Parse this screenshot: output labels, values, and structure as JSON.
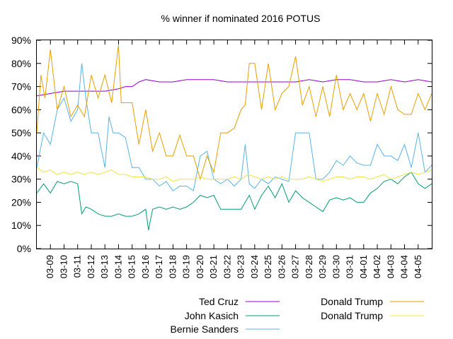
{
  "chart_data": {
    "type": "line",
    "title": "% winner if nominated 2016 POTUS",
    "xlabel": "",
    "ylabel": "",
    "ylim": [
      0,
      90
    ],
    "xlim": [
      "03-08",
      "04-06"
    ],
    "grid": false,
    "legend_position": "bottom",
    "y_ticks": [
      "0%",
      "10%",
      "20%",
      "30%",
      "40%",
      "50%",
      "60%",
      "70%",
      "80%",
      "90%"
    ],
    "x_ticks": [
      "03-09",
      "03-10",
      "03-11",
      "03-12",
      "03-13",
      "03-14",
      "03-15",
      "03-16",
      "03-17",
      "03-18",
      "03-19",
      "03-20",
      "03-21",
      "03-22",
      "03-23",
      "03-24",
      "03-25",
      "03-26",
      "03-27",
      "03-28",
      "03-29",
      "03-30",
      "03-31",
      "04-01",
      "04-02",
      "04-03",
      "04-04",
      "04-05"
    ],
    "series": [
      {
        "name": "Ted Cruz",
        "color": "#9400d3",
        "points": [
          [
            "03-08",
            66
          ],
          [
            "03-09",
            67
          ],
          [
            "03-10",
            68
          ],
          [
            "03-11",
            68
          ],
          [
            "03-12",
            68
          ],
          [
            "03-13",
            68
          ],
          [
            "03-14",
            69
          ],
          [
            "03-14.5",
            70
          ],
          [
            "03-15",
            70
          ],
          [
            "03-15.5",
            72
          ],
          [
            "03-16",
            73
          ],
          [
            "03-17",
            72
          ],
          [
            "03-18",
            72
          ],
          [
            "03-19",
            73
          ],
          [
            "03-20",
            73
          ],
          [
            "03-21",
            73
          ],
          [
            "03-22",
            72
          ],
          [
            "03-23",
            72
          ],
          [
            "03-24",
            72
          ],
          [
            "03-25",
            72
          ],
          [
            "03-26",
            72
          ],
          [
            "03-27",
            72
          ],
          [
            "03-28",
            73
          ],
          [
            "03-29",
            72
          ],
          [
            "03-30",
            73
          ],
          [
            "03-31",
            73
          ],
          [
            "04-01",
            72
          ],
          [
            "04-02",
            72
          ],
          [
            "04-03",
            73
          ],
          [
            "04-04",
            72
          ],
          [
            "04-05",
            73
          ],
          [
            "04-06",
            72
          ]
        ]
      },
      {
        "name": "John Kasich",
        "color": "#009e73",
        "points": [
          [
            "03-08",
            24
          ],
          [
            "03-08.5",
            28
          ],
          [
            "03-09",
            24
          ],
          [
            "03-09.5",
            29
          ],
          [
            "03-10",
            28
          ],
          [
            "03-10.5",
            29
          ],
          [
            "03-11",
            28
          ],
          [
            "03-11.3",
            15
          ],
          [
            "03-11.6",
            18
          ],
          [
            "03-12",
            17
          ],
          [
            "03-12.5",
            15
          ],
          [
            "03-13",
            14
          ],
          [
            "03-13.5",
            14
          ],
          [
            "03-14",
            15
          ],
          [
            "03-14.5",
            14
          ],
          [
            "03-15",
            14
          ],
          [
            "03-15.5",
            15
          ],
          [
            "03-16",
            17
          ],
          [
            "03-16.2",
            8
          ],
          [
            "03-16.5",
            17
          ],
          [
            "03-17",
            18
          ],
          [
            "03-17.5",
            17
          ],
          [
            "03-18",
            18
          ],
          [
            "03-18.5",
            17
          ],
          [
            "03-19",
            18
          ],
          [
            "03-19.5",
            20
          ],
          [
            "03-20",
            23
          ],
          [
            "03-20.5",
            22
          ],
          [
            "03-21",
            23
          ],
          [
            "03-21.5",
            17
          ],
          [
            "03-22",
            17
          ],
          [
            "03-22.5",
            17
          ],
          [
            "03-23",
            17
          ],
          [
            "03-23.3",
            20
          ],
          [
            "03-23.6",
            23
          ],
          [
            "03-24",
            17
          ],
          [
            "03-24.5",
            23
          ],
          [
            "03-25",
            27
          ],
          [
            "03-25.5",
            22
          ],
          [
            "03-26",
            28
          ],
          [
            "03-26.5",
            20
          ],
          [
            "03-27",
            25
          ],
          [
            "03-27.5",
            22
          ],
          [
            "03-28",
            20
          ],
          [
            "03-28.5",
            18
          ],
          [
            "03-29",
            16
          ],
          [
            "03-29.5",
            21
          ],
          [
            "03-30",
            22
          ],
          [
            "03-30.5",
            21
          ],
          [
            "03-31",
            22
          ],
          [
            "03-31.5",
            20
          ],
          [
            "04-01",
            20
          ],
          [
            "04-01.5",
            24
          ],
          [
            "04-02",
            26
          ],
          [
            "04-02.5",
            29
          ],
          [
            "04-03",
            30
          ],
          [
            "04-03.5",
            28
          ],
          [
            "04-04",
            31
          ],
          [
            "04-04.5",
            33
          ],
          [
            "04-05",
            28
          ],
          [
            "04-05.5",
            26
          ],
          [
            "04-06",
            28
          ]
        ]
      },
      {
        "name": "Bernie Sanders",
        "color": "#56b4e9",
        "points": [
          [
            "03-08",
            35
          ],
          [
            "03-08.5",
            50
          ],
          [
            "03-09",
            45
          ],
          [
            "03-09.5",
            60
          ],
          [
            "03-10",
            65
          ],
          [
            "03-10.5",
            55
          ],
          [
            "03-11",
            60
          ],
          [
            "03-11.3",
            80
          ],
          [
            "03-11.6",
            65
          ],
          [
            "03-12",
            50
          ],
          [
            "03-12.5",
            50
          ],
          [
            "03-13",
            35
          ],
          [
            "03-13.3",
            57
          ],
          [
            "03-13.6",
            50
          ],
          [
            "03-14",
            50
          ],
          [
            "03-14.5",
            48
          ],
          [
            "03-15",
            35
          ],
          [
            "03-15.5",
            35
          ],
          [
            "03-16",
            30
          ],
          [
            "03-16.5",
            30
          ],
          [
            "03-17",
            27
          ],
          [
            "03-17.5",
            29
          ],
          [
            "03-18",
            25
          ],
          [
            "03-18.5",
            27
          ],
          [
            "03-19",
            27
          ],
          [
            "03-19.5",
            25
          ],
          [
            "03-20",
            40
          ],
          [
            "03-20.5",
            42
          ],
          [
            "03-21",
            30
          ],
          [
            "03-21.5",
            28
          ],
          [
            "03-22",
            30
          ],
          [
            "03-22.5",
            27
          ],
          [
            "03-23",
            30
          ],
          [
            "03-23.3",
            45
          ],
          [
            "03-23.6",
            28
          ],
          [
            "03-24",
            26
          ],
          [
            "03-24.5",
            30
          ],
          [
            "03-25",
            28
          ],
          [
            "03-25.5",
            31
          ],
          [
            "03-26",
            30
          ],
          [
            "03-26.5",
            29
          ],
          [
            "03-27",
            50
          ],
          [
            "03-27.5",
            50
          ],
          [
            "03-28",
            50
          ],
          [
            "03-28.5",
            30
          ],
          [
            "03-29",
            30
          ],
          [
            "03-29.5",
            33
          ],
          [
            "03-30",
            38
          ],
          [
            "03-30.5",
            36
          ],
          [
            "03-31",
            40
          ],
          [
            "03-31.5",
            37
          ],
          [
            "04-01",
            36
          ],
          [
            "04-01.5",
            36
          ],
          [
            "04-02",
            45
          ],
          [
            "04-02.5",
            40
          ],
          [
            "04-03",
            40
          ],
          [
            "04-03.5",
            38
          ],
          [
            "04-04",
            45
          ],
          [
            "04-04.5",
            35
          ],
          [
            "04-05",
            50
          ],
          [
            "04-05.5",
            33
          ],
          [
            "04-06",
            36
          ]
        ]
      },
      {
        "name": "Donald Trump",
        "color": "#e69f00",
        "points": [
          [
            "03-08",
            50
          ],
          [
            "03-08.3",
            75
          ],
          [
            "03-08.6",
            65
          ],
          [
            "03-09",
            86
          ],
          [
            "03-09.5",
            60
          ],
          [
            "03-10",
            70
          ],
          [
            "03-10.5",
            57
          ],
          [
            "03-11",
            62
          ],
          [
            "03-11.5",
            57
          ],
          [
            "03-12",
            75
          ],
          [
            "03-12.5",
            65
          ],
          [
            "03-13",
            75
          ],
          [
            "03-13.5",
            63
          ],
          [
            "03-14",
            88
          ],
          [
            "03-14.2",
            63
          ],
          [
            "03-14.5",
            63
          ],
          [
            "03-15",
            63
          ],
          [
            "03-15.5",
            45
          ],
          [
            "03-16",
            60
          ],
          [
            "03-16.5",
            42
          ],
          [
            "03-17",
            50
          ],
          [
            "03-17.5",
            40
          ],
          [
            "03-18",
            40
          ],
          [
            "03-18.5",
            49
          ],
          [
            "03-19",
            40
          ],
          [
            "03-19.5",
            40
          ],
          [
            "03-20",
            30
          ],
          [
            "03-20.5",
            40
          ],
          [
            "03-21",
            33
          ],
          [
            "03-21.5",
            50
          ],
          [
            "03-22",
            50
          ],
          [
            "03-22.5",
            52
          ],
          [
            "03-23",
            60
          ],
          [
            "03-23.3",
            62
          ],
          [
            "03-23.6",
            80
          ],
          [
            "03-24",
            80
          ],
          [
            "03-24.5",
            60
          ],
          [
            "03-25",
            80
          ],
          [
            "03-25.5",
            60
          ],
          [
            "03-26",
            67
          ],
          [
            "03-26.5",
            70
          ],
          [
            "03-27",
            83
          ],
          [
            "03-27.5",
            62
          ],
          [
            "03-28",
            70
          ],
          [
            "03-28.5",
            57
          ],
          [
            "03-29",
            70
          ],
          [
            "03-29.5",
            57
          ],
          [
            "03-30",
            75
          ],
          [
            "03-30.5",
            60
          ],
          [
            "03-31",
            67
          ],
          [
            "03-31.5",
            60
          ],
          [
            "04-01",
            67
          ],
          [
            "04-01.5",
            55
          ],
          [
            "04-02",
            67
          ],
          [
            "04-02.5",
            58
          ],
          [
            "04-03",
            70
          ],
          [
            "04-03.5",
            60
          ],
          [
            "04-04",
            58
          ],
          [
            "04-04.5",
            58
          ],
          [
            "04-05",
            67
          ],
          [
            "04-05.5",
            60
          ],
          [
            "04-06",
            67
          ]
        ]
      },
      {
        "name": "Donald Trump",
        "color": "#f0e442",
        "points": [
          [
            "03-08",
            35
          ],
          [
            "03-08.5",
            33
          ],
          [
            "03-09",
            34
          ],
          [
            "03-09.5",
            32
          ],
          [
            "03-10",
            33
          ],
          [
            "03-10.5",
            32
          ],
          [
            "03-11",
            33
          ],
          [
            "03-11.5",
            32
          ],
          [
            "03-12",
            33
          ],
          [
            "03-12.5",
            32
          ],
          [
            "03-13",
            33
          ],
          [
            "03-13.5",
            34
          ],
          [
            "03-14",
            32
          ],
          [
            "03-14.5",
            32
          ],
          [
            "03-15",
            31
          ],
          [
            "03-15.5",
            31
          ],
          [
            "03-16",
            31
          ],
          [
            "03-16.5",
            30
          ],
          [
            "03-17",
            30
          ],
          [
            "03-17.5",
            31
          ],
          [
            "03-18",
            29
          ],
          [
            "03-18.5",
            30
          ],
          [
            "03-19",
            30
          ],
          [
            "03-19.5",
            30
          ],
          [
            "03-20",
            31
          ],
          [
            "03-20.5",
            30
          ],
          [
            "03-21",
            30
          ],
          [
            "03-21.5",
            30
          ],
          [
            "03-22",
            30
          ],
          [
            "03-22.5",
            31
          ],
          [
            "03-23",
            30
          ],
          [
            "03-23.5",
            32
          ],
          [
            "03-24",
            31
          ],
          [
            "03-24.5",
            30
          ],
          [
            "03-25",
            31
          ],
          [
            "03-25.5",
            30
          ],
          [
            "03-26",
            31
          ],
          [
            "03-26.5",
            30
          ],
          [
            "03-27",
            30
          ],
          [
            "03-27.5",
            30
          ],
          [
            "03-28",
            31
          ],
          [
            "03-28.5",
            30
          ],
          [
            "03-29",
            29
          ],
          [
            "03-29.5",
            30
          ],
          [
            "03-30",
            31
          ],
          [
            "03-30.5",
            31
          ],
          [
            "03-31",
            30
          ],
          [
            "03-31.5",
            31
          ],
          [
            "04-01",
            31
          ],
          [
            "04-01.5",
            30
          ],
          [
            "04-02",
            31
          ],
          [
            "04-02.5",
            32
          ],
          [
            "04-03",
            30
          ],
          [
            "04-03.5",
            31
          ],
          [
            "04-04",
            32
          ],
          [
            "04-04.5",
            33
          ],
          [
            "04-05",
            32
          ],
          [
            "04-05.5",
            33
          ],
          [
            "04-06",
            34
          ]
        ]
      }
    ]
  }
}
